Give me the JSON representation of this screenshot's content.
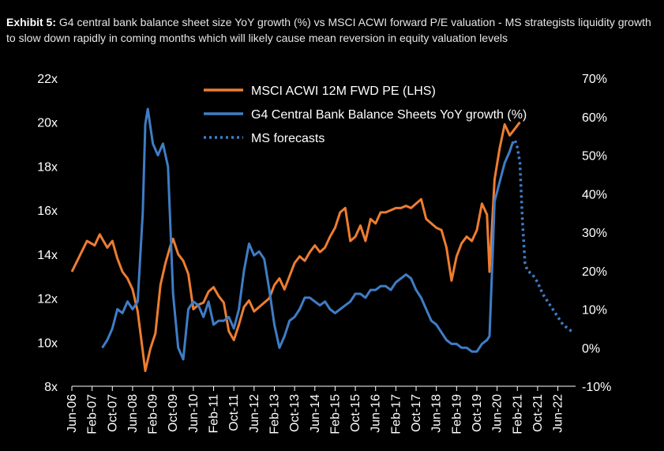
{
  "title": {
    "prefix": "Exhibit 5:",
    "text": "G4 central bank balance sheet size YoY growth (%) vs MSCI ACWI forward P/E valuation - MS strategists liquidity growth to slow down rapidly in coming months which will likely cause mean reversion in equity valuation levels"
  },
  "chart_data": {
    "type": "line",
    "title": "G4 central bank balance sheet size YoY growth (%) vs MSCI ACWI forward P/E valuation - MS strategists liquidity growth to slow down rapidly in coming months which will likely cause mean reversion in equity valuation levels",
    "x_axis": {
      "start": "2006-06",
      "end": "2023-01",
      "tick_labels": [
        "Jun-06",
        "Feb-07",
        "Oct-07",
        "Jun-08",
        "Feb-09",
        "Oct-09",
        "Jun-10",
        "Feb-11",
        "Oct-11",
        "Jun-12",
        "Feb-13",
        "Oct-13",
        "Jun-14",
        "Feb-15",
        "Oct-15",
        "Jun-16",
        "Feb-17",
        "Oct-17",
        "Jun-18",
        "Feb-19",
        "Oct-19",
        "Jun-20",
        "Feb-21",
        "Oct-21",
        "Jun-22"
      ]
    },
    "y_left": {
      "min": 8,
      "max": 22,
      "step": 2,
      "suffix": "x",
      "labels": [
        "8x",
        "10x",
        "12x",
        "14x",
        "16x",
        "18x",
        "20x",
        "22x"
      ]
    },
    "y_right": {
      "min": -10,
      "max": 70,
      "step": 10,
      "suffix": "%",
      "labels": [
        "-10%",
        "0%",
        "10%",
        "20%",
        "30%",
        "40%",
        "50%",
        "60%",
        "70%"
      ]
    },
    "legend": {
      "position": "top-center"
    },
    "series": [
      {
        "name": "MSCI ACWI 12M FWD PE (LHS)",
        "axis": "left",
        "color": "#ED7D31",
        "style": "solid",
        "points": [
          [
            "2006-06",
            13.2
          ],
          [
            "2006-09",
            13.9
          ],
          [
            "2006-12",
            14.6
          ],
          [
            "2007-03",
            14.4
          ],
          [
            "2007-05",
            14.9
          ],
          [
            "2007-08",
            14.3
          ],
          [
            "2007-10",
            14.6
          ],
          [
            "2007-12",
            13.8
          ],
          [
            "2008-02",
            13.2
          ],
          [
            "2008-04",
            12.9
          ],
          [
            "2008-06",
            12.4
          ],
          [
            "2008-08",
            11.4
          ],
          [
            "2008-10",
            9.6
          ],
          [
            "2008-11",
            8.7
          ],
          [
            "2009-01",
            9.7
          ],
          [
            "2009-03",
            10.4
          ],
          [
            "2009-05",
            12.6
          ],
          [
            "2009-07",
            13.6
          ],
          [
            "2009-09",
            14.4
          ],
          [
            "2009-10",
            14.7
          ],
          [
            "2009-12",
            14.0
          ],
          [
            "2010-02",
            13.7
          ],
          [
            "2010-04",
            13.1
          ],
          [
            "2010-06",
            11.5
          ],
          [
            "2010-08",
            11.7
          ],
          [
            "2010-10",
            11.8
          ],
          [
            "2010-12",
            12.3
          ],
          [
            "2011-02",
            12.5
          ],
          [
            "2011-04",
            12.1
          ],
          [
            "2011-06",
            11.8
          ],
          [
            "2011-08",
            10.5
          ],
          [
            "2011-10",
            10.1
          ],
          [
            "2011-12",
            10.8
          ],
          [
            "2012-02",
            11.6
          ],
          [
            "2012-04",
            11.9
          ],
          [
            "2012-06",
            11.4
          ],
          [
            "2012-08",
            11.6
          ],
          [
            "2012-10",
            11.8
          ],
          [
            "2012-12",
            12.0
          ],
          [
            "2013-02",
            12.6
          ],
          [
            "2013-04",
            12.9
          ],
          [
            "2013-06",
            12.4
          ],
          [
            "2013-08",
            13.0
          ],
          [
            "2013-10",
            13.6
          ],
          [
            "2013-12",
            13.9
          ],
          [
            "2014-02",
            13.7
          ],
          [
            "2014-04",
            14.1
          ],
          [
            "2014-06",
            14.4
          ],
          [
            "2014-08",
            14.1
          ],
          [
            "2014-10",
            14.3
          ],
          [
            "2014-12",
            14.8
          ],
          [
            "2015-02",
            15.2
          ],
          [
            "2015-04",
            15.9
          ],
          [
            "2015-06",
            16.1
          ],
          [
            "2015-08",
            14.6
          ],
          [
            "2015-10",
            14.8
          ],
          [
            "2015-12",
            15.3
          ],
          [
            "2016-02",
            14.6
          ],
          [
            "2016-04",
            15.6
          ],
          [
            "2016-06",
            15.4
          ],
          [
            "2016-08",
            15.9
          ],
          [
            "2016-10",
            15.9
          ],
          [
            "2016-12",
            16.0
          ],
          [
            "2017-02",
            16.1
          ],
          [
            "2017-04",
            16.1
          ],
          [
            "2017-06",
            16.2
          ],
          [
            "2017-08",
            16.1
          ],
          [
            "2017-10",
            16.3
          ],
          [
            "2017-12",
            16.5
          ],
          [
            "2018-02",
            15.6
          ],
          [
            "2018-04",
            15.4
          ],
          [
            "2018-06",
            15.2
          ],
          [
            "2018-08",
            15.1
          ],
          [
            "2018-10",
            14.3
          ],
          [
            "2018-12",
            12.8
          ],
          [
            "2019-02",
            13.9
          ],
          [
            "2019-04",
            14.5
          ],
          [
            "2019-06",
            14.8
          ],
          [
            "2019-08",
            14.6
          ],
          [
            "2019-10",
            15.1
          ],
          [
            "2019-12",
            16.3
          ],
          [
            "2020-02",
            15.8
          ],
          [
            "2020-03",
            13.2
          ],
          [
            "2020-05",
            17.4
          ],
          [
            "2020-07",
            18.8
          ],
          [
            "2020-09",
            19.9
          ],
          [
            "2020-11",
            19.4
          ],
          [
            "2021-01",
            19.7
          ],
          [
            "2021-03",
            20.0
          ]
        ]
      },
      {
        "name": "G4 Central Bank Balance Sheets YoY growth (%)",
        "axis": "right",
        "color": "#3F7DC6",
        "style": "solid",
        "points": [
          [
            "2007-06",
            0
          ],
          [
            "2007-08",
            2
          ],
          [
            "2007-10",
            5
          ],
          [
            "2007-12",
            10
          ],
          [
            "2008-02",
            9
          ],
          [
            "2008-04",
            12
          ],
          [
            "2008-06",
            10
          ],
          [
            "2008-08",
            12
          ],
          [
            "2008-10",
            35
          ],
          [
            "2008-11",
            58
          ],
          [
            "2008-12",
            62
          ],
          [
            "2009-02",
            53
          ],
          [
            "2009-04",
            50
          ],
          [
            "2009-06",
            53
          ],
          [
            "2009-08",
            47
          ],
          [
            "2009-10",
            14
          ],
          [
            "2009-12",
            0
          ],
          [
            "2010-02",
            -3
          ],
          [
            "2010-04",
            10
          ],
          [
            "2010-06",
            12
          ],
          [
            "2010-08",
            11
          ],
          [
            "2010-10",
            8
          ],
          [
            "2010-12",
            12
          ],
          [
            "2011-02",
            6
          ],
          [
            "2011-04",
            7
          ],
          [
            "2011-06",
            7
          ],
          [
            "2011-08",
            8
          ],
          [
            "2011-10",
            5
          ],
          [
            "2011-12",
            10
          ],
          [
            "2012-02",
            20
          ],
          [
            "2012-04",
            27
          ],
          [
            "2012-06",
            24
          ],
          [
            "2012-08",
            25
          ],
          [
            "2012-10",
            23
          ],
          [
            "2012-12",
            15
          ],
          [
            "2013-02",
            6
          ],
          [
            "2013-04",
            0
          ],
          [
            "2013-06",
            3
          ],
          [
            "2013-08",
            7
          ],
          [
            "2013-10",
            8
          ],
          [
            "2013-12",
            10
          ],
          [
            "2014-02",
            13
          ],
          [
            "2014-04",
            13
          ],
          [
            "2014-06",
            12
          ],
          [
            "2014-08",
            11
          ],
          [
            "2014-10",
            12
          ],
          [
            "2014-12",
            10
          ],
          [
            "2015-02",
            9
          ],
          [
            "2015-04",
            10
          ],
          [
            "2015-06",
            11
          ],
          [
            "2015-08",
            12
          ],
          [
            "2015-10",
            14
          ],
          [
            "2015-12",
            14
          ],
          [
            "2016-02",
            13
          ],
          [
            "2016-04",
            15
          ],
          [
            "2016-06",
            15
          ],
          [
            "2016-08",
            16
          ],
          [
            "2016-10",
            16
          ],
          [
            "2016-12",
            15
          ],
          [
            "2017-02",
            17
          ],
          [
            "2017-04",
            18
          ],
          [
            "2017-06",
            19
          ],
          [
            "2017-08",
            18
          ],
          [
            "2017-10",
            15
          ],
          [
            "2017-12",
            13
          ],
          [
            "2018-02",
            10
          ],
          [
            "2018-04",
            7
          ],
          [
            "2018-06",
            6
          ],
          [
            "2018-08",
            4
          ],
          [
            "2018-10",
            2
          ],
          [
            "2018-12",
            1
          ],
          [
            "2019-02",
            1
          ],
          [
            "2019-04",
            0
          ],
          [
            "2019-06",
            0
          ],
          [
            "2019-08",
            -1
          ],
          [
            "2019-10",
            -1
          ],
          [
            "2019-12",
            1
          ],
          [
            "2020-02",
            2
          ],
          [
            "2020-03",
            3
          ],
          [
            "2020-04",
            20
          ],
          [
            "2020-05",
            38
          ],
          [
            "2020-07",
            43
          ],
          [
            "2020-09",
            48
          ],
          [
            "2020-11",
            51
          ],
          [
            "2020-12",
            53
          ]
        ]
      },
      {
        "name": "MS forecasts",
        "axis": "right",
        "color": "#3F7DC6",
        "style": "dotted",
        "points": [
          [
            "2020-12",
            53
          ],
          [
            "2021-01",
            54
          ],
          [
            "2021-02",
            52
          ],
          [
            "2021-03",
            48
          ],
          [
            "2021-04",
            33
          ],
          [
            "2021-05",
            22
          ],
          [
            "2021-06",
            20
          ],
          [
            "2021-08",
            19
          ],
          [
            "2021-10",
            17
          ],
          [
            "2021-12",
            14
          ],
          [
            "2022-02",
            12
          ],
          [
            "2022-04",
            10
          ],
          [
            "2022-06",
            8
          ],
          [
            "2022-08",
            6
          ],
          [
            "2022-10",
            5
          ],
          [
            "2022-12",
            4
          ]
        ]
      }
    ]
  }
}
